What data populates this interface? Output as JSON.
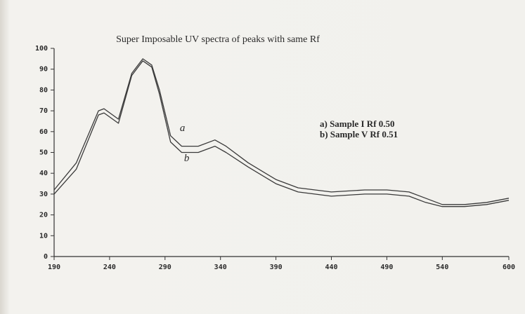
{
  "chart_data": {
    "type": "line",
    "title": "Super Imposable UV spectra of peaks with same Rf",
    "annotations": [
      "a) Sample I Rf 0.50",
      "b) Sample V Rf 0.51"
    ],
    "x": [
      190,
      210,
      230,
      235,
      248,
      260,
      270,
      278,
      285,
      295,
      305,
      320,
      335,
      345,
      365,
      390,
      410,
      440,
      470,
      490,
      510,
      525,
      540,
      560,
      580,
      600
    ],
    "series": [
      {
        "name": "a",
        "color": "#3a3a3a",
        "values": [
          32,
          45,
          70,
          71,
          66,
          88,
          95,
          92,
          80,
          58,
          53,
          53,
          56,
          53,
          45,
          37,
          33,
          31,
          32,
          32,
          31,
          28,
          25,
          25,
          26,
          28
        ]
      },
      {
        "name": "b",
        "color": "#3a3a3a",
        "values": [
          30,
          42,
          68,
          69,
          64,
          87,
          94,
          91,
          78,
          55,
          50,
          50,
          53,
          50,
          43,
          35,
          31,
          29,
          30,
          30,
          29,
          26,
          24,
          24,
          25,
          27
        ]
      }
    ],
    "xlim": [
      190,
      600
    ],
    "ylim": [
      0,
      100
    ],
    "xticks": [
      190,
      240,
      290,
      340,
      390,
      440,
      490,
      540,
      600
    ],
    "yticks": [
      0,
      10,
      20,
      30,
      40,
      50,
      60,
      70,
      80,
      90,
      100
    ]
  }
}
